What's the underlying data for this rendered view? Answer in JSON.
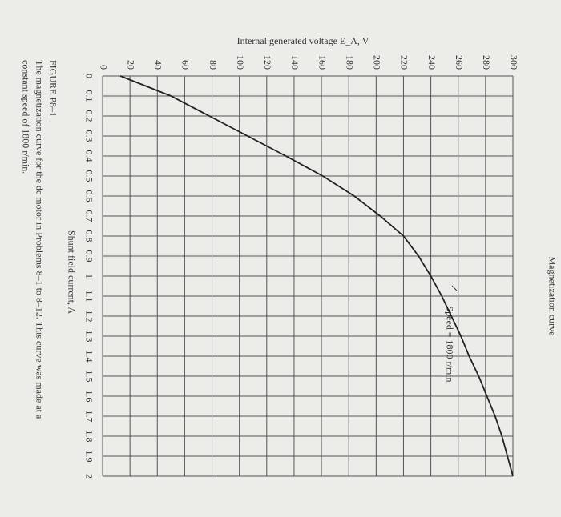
{
  "chart_data": {
    "type": "line",
    "title": "Magnetization curve",
    "x_label": "Shunt field current, A",
    "y_label": "Internal generated voltage E_A, V",
    "annotation": "Speed = 1800 r/min",
    "caption_title": "FIGURE P8–1",
    "caption_lines": [
      "The magnetization curve for the dc motor in Problems 8–1 to 8–12. This curve was made at a",
      "constant speed of 1800 r/min."
    ],
    "x": [
      0,
      0.1,
      0.2,
      0.3,
      0.4,
      0.5,
      0.6,
      0.7,
      0.8,
      0.9,
      1,
      1.1,
      1.2,
      1.3,
      1.4,
      1.5,
      1.6,
      1.7,
      1.8,
      1.9,
      2
    ],
    "series": [
      {
        "name": "Speed = 1800 r/min",
        "color": "#222222",
        "values": [
          13,
          50,
          78,
          106,
          134,
          161,
          184,
          203,
          220,
          231,
          240,
          248,
          255,
          262,
          268,
          275,
          281,
          287,
          292,
          296,
          300
        ]
      }
    ],
    "xlim": [
      0,
      2
    ],
    "ylim": [
      0,
      300
    ],
    "xticks": [
      0,
      0.1,
      0.2,
      0.3,
      0.4,
      0.5,
      0.6,
      0.7,
      0.8,
      0.9,
      1,
      1.1,
      1.2,
      1.3,
      1.4,
      1.5,
      1.6,
      1.7,
      1.8,
      1.9,
      2
    ],
    "yticks": [
      0,
      20,
      40,
      60,
      80,
      100,
      120,
      140,
      160,
      180,
      200,
      220,
      240,
      260,
      280,
      300
    ],
    "grid": true
  }
}
